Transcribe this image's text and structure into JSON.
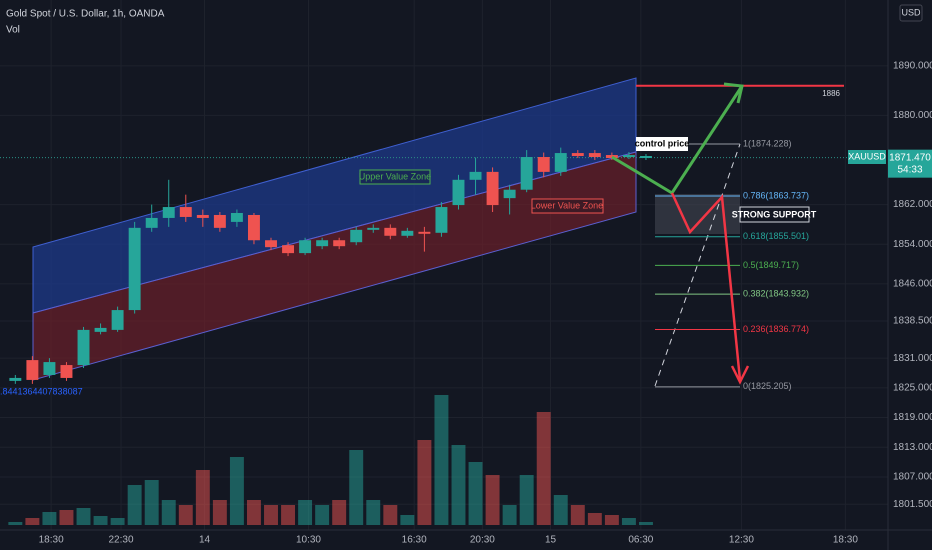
{
  "header": {
    "title": "Gold Spot / U.S. Dollar, 1h, OANDA",
    "indicator": "Vol"
  },
  "chart_data": {
    "type": "candlestick",
    "colors": {
      "up": "#26a69a",
      "down": "#ef5350"
    },
    "open": [
      1826.4,
      1830.6,
      1827.6,
      1829.6,
      1829.6,
      1836.3,
      1836.7,
      1840.7,
      1857.3,
      1859.3,
      1861.5,
      1859.9,
      1859.9,
      1858.5,
      1859.9,
      1854.8,
      1853.8,
      1852.2,
      1853.6,
      1854.8,
      1854.4,
      1856.9,
      1857.3,
      1855.7,
      1856.5,
      1856.3,
      1861.9,
      1867.0,
      1868.6,
      1863.3,
      1865.0,
      1871.6,
      1868.6,
      1872.4,
      1872.4,
      1872.0,
      1871.6,
      1871.4
    ],
    "high": [
      1827.6,
      1831.4,
      1831,
      1830.2,
      1837.3,
      1838,
      1841.4,
      1858.5,
      1862,
      1867,
      1864,
      1861,
      1860.5,
      1861,
      1860.3,
      1855.3,
      1854.4,
      1855.3,
      1855.3,
      1855.3,
      1857.5,
      1858,
      1858,
      1857.3,
      1857.5,
      1862.5,
      1868,
      1871.5,
      1869.5,
      1866,
      1873,
      1872.5,
      1873.5,
      1873,
      1873,
      1872.5,
      1872.6,
      1872.2
    ],
    "low": [
      1825.8,
      1825.8,
      1827,
      1826.4,
      1829,
      1835.8,
      1836.3,
      1840,
      1856.5,
      1857.5,
      1858.5,
      1857.5,
      1856.5,
      1857.5,
      1854,
      1852.8,
      1851.6,
      1851.8,
      1853,
      1853,
      1853.8,
      1856.3,
      1855,
      1855.3,
      1852.5,
      1855.5,
      1861,
      1864,
      1860.5,
      1860,
      1864.5,
      1867.5,
      1867.8,
      1871.4,
      1871,
      1871,
      1871.2,
      1871
    ],
    "close": [
      1827.0,
      1826.6,
      1830.2,
      1827.0,
      1836.7,
      1837.1,
      1840.7,
      1857.3,
      1859.3,
      1861.5,
      1859.5,
      1859.3,
      1857.3,
      1860.3,
      1854.8,
      1853.4,
      1852.2,
      1854.8,
      1854.8,
      1853.6,
      1856.9,
      1857.3,
      1855.7,
      1856.7,
      1856.1,
      1861.5,
      1867.0,
      1868.6,
      1861.9,
      1865.0,
      1871.6,
      1868.6,
      1872.4,
      1871.8,
      1871.6,
      1871.4,
      1872.0,
      1871.8
    ],
    "volume": [
      3,
      7,
      13,
      15,
      17,
      9,
      7,
      40,
      45,
      25,
      20,
      55,
      25,
      68,
      25,
      20,
      20,
      25,
      20,
      25,
      75,
      25,
      20,
      10,
      85,
      130,
      80,
      63,
      50,
      20,
      50,
      113,
      30,
      20,
      12,
      10,
      7,
      3
    ],
    "volume_lim": [
      0,
      140
    ],
    "ylim": [
      1796.3,
      1903.3
    ],
    "yticks": [
      {
        "value": 1890,
        "label": "1890.000"
      },
      {
        "value": 1880,
        "label": "1880.000"
      },
      {
        "value": 1862,
        "label": "1862.000"
      },
      {
        "value": 1854,
        "label": "1854.000"
      },
      {
        "value": 1846,
        "label": "1846.000"
      },
      {
        "value": 1838.5,
        "label": "1838.500"
      },
      {
        "value": 1831,
        "label": "1831.000"
      },
      {
        "value": 1825,
        "label": "1825.000"
      },
      {
        "value": 1819,
        "label": "1819.000"
      },
      {
        "value": 1813,
        "label": "1813.000"
      },
      {
        "value": 1807,
        "label": "1807.000"
      },
      {
        "value": 1801.5,
        "label": "1801.500"
      }
    ],
    "xlim": [
      -0.9,
      51.2
    ],
    "xticks": [
      {
        "value": 2.1,
        "label": "18:30"
      },
      {
        "value": 6.2,
        "label": "22:30"
      },
      {
        "value": 11.1,
        "label": "14"
      },
      {
        "value": 17.2,
        "label": "10:30"
      },
      {
        "value": 23.4,
        "label": "16:30"
      },
      {
        "value": 27.4,
        "label": "20:30"
      },
      {
        "value": 31.4,
        "label": "15"
      },
      {
        "value": 36.7,
        "label": "06:30"
      },
      {
        "value": 42.6,
        "label": "12:30"
      },
      {
        "value": 48.7,
        "label": "18:30"
      }
    ],
    "grid": true,
    "currency": "USD",
    "symbol": "XAUUSD",
    "last_price": {
      "value": 1871.47,
      "label": "1871.470"
    },
    "countdown": "54:33",
    "fib_levels": [
      {
        "price": 1874.228,
        "label": "1(1874.228)",
        "color": "#9598a1"
      },
      {
        "price": 1863.737,
        "label": "0.786(1863.737)",
        "color": "#64b5f6"
      },
      {
        "price": 1855.501,
        "label": "0.618(1855.501)",
        "color": "#26a69a"
      },
      {
        "price": 1849.717,
        "label": "0.5(1849.717)",
        "color": "#4caf50"
      },
      {
        "price": 1843.932,
        "label": "0.382(1843.932)",
        "color": "#81c784"
      },
      {
        "price": 1836.774,
        "label": "0.236(1836.774)",
        "color": "#f23645"
      },
      {
        "price": 1825.205,
        "label": "0(1825.205)",
        "color": "#9598a1"
      }
    ],
    "target": {
      "value": 1886,
      "label": "1886"
    },
    "annotations": {
      "control": "control price",
      "support": "STRONG SUPPORT",
      "upper_zone": "Upper Value Zone",
      "lower_zone": "Lower Value Zone",
      "channel_start": ".8441364407838087"
    }
  }
}
